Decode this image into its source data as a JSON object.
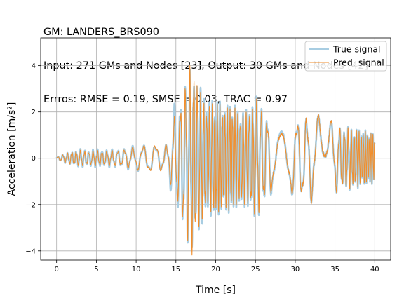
{
  "chart_data": {
    "type": "line",
    "title_lines": [
      "GM: LANDERS_BRS090",
      "Input: 271 GMs and Nodes [23], Output: 30 GMs and Nodes [42]",
      "Errros: RMSE = 0.19, SMSE = 0.03, TRAC = 0.97"
    ],
    "xlabel": "Time [s]",
    "ylabel": "Acceleration [m/s²]",
    "xlim": [
      -2,
      42
    ],
    "ylim": [
      -4.4,
      5.2
    ],
    "xticks": [
      0,
      5,
      10,
      15,
      20,
      25,
      30,
      35,
      40
    ],
    "yticks": [
      -4,
      -2,
      0,
      2,
      4
    ],
    "grid": true,
    "legend_position": "top-right",
    "series": [
      {
        "name": "True signal",
        "color": "#a8cde2"
      },
      {
        "name": "Pred. signal",
        "color": "#f28e2b"
      }
    ],
    "envelope_true": {
      "t": [
        0,
        1,
        2,
        3,
        4,
        5,
        6,
        7,
        8,
        9,
        10,
        11,
        12,
        13,
        14,
        14.8,
        15.2,
        16,
        16.5,
        17,
        17.5,
        18,
        19,
        20,
        21,
        22,
        23,
        24,
        25,
        26,
        27,
        28,
        29,
        30,
        31,
        32,
        33,
        34,
        35,
        36,
        37,
        38,
        39,
        40
      ],
      "amp": [
        0.05,
        0.2,
        0.3,
        0.4,
        0.35,
        0.4,
        0.35,
        0.4,
        0.4,
        0.5,
        0.55,
        0.6,
        0.65,
        0.55,
        0.6,
        2.5,
        2.3,
        3.3,
        3.6,
        4.2,
        3.6,
        3.2,
        2.4,
        2.6,
        2.3,
        2.4,
        2.1,
        2.2,
        2.7,
        2.2,
        1.7,
        1.3,
        1.6,
        1.8,
        1.8,
        1.9,
        1.8,
        1.7,
        1.5,
        1.4,
        1.35,
        1.25,
        1.15,
        1.05
      ]
    },
    "envelope_pred": {
      "t": [
        0,
        1,
        2,
        3,
        4,
        5,
        6,
        7,
        8,
        9,
        10,
        11,
        12,
        13,
        14,
        14.8,
        15.2,
        16,
        16.5,
        17,
        17.5,
        18,
        19,
        20,
        21,
        22,
        23,
        24,
        25,
        26,
        27,
        28,
        29,
        30,
        31,
        32,
        33,
        34,
        35,
        36,
        37,
        38,
        39,
        40
      ],
      "amp": [
        0.05,
        0.2,
        0.3,
        0.35,
        0.3,
        0.35,
        0.3,
        0.35,
        0.35,
        0.45,
        0.5,
        0.6,
        0.7,
        0.6,
        0.6,
        1.9,
        2.0,
        3.2,
        3.5,
        4.6,
        3.8,
        3.0,
        2.2,
        2.5,
        2.2,
        2.3,
        2.0,
        2.1,
        2.6,
        2.1,
        1.6,
        1.2,
        1.5,
        1.75,
        1.85,
        1.95,
        1.85,
        1.75,
        1.5,
        1.4,
        1.3,
        1.2,
        1.1,
        1.05
      ]
    }
  }
}
